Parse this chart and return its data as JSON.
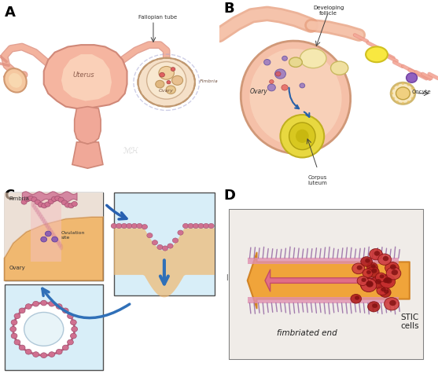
{
  "figure_width": 5.57,
  "figure_height": 4.76,
  "dpi": 100,
  "background_color": "#ffffff",
  "panel_labels": [
    "A",
    "B",
    "C",
    "D"
  ],
  "panel_label_fontsize": 13,
  "panel_label_fontweight": "bold",
  "panel_label_color": "#000000",
  "colors": {
    "uterus_fill": "#f5b8a0",
    "uterus_edge": "#e08870",
    "tube_outer": "#f0a090",
    "tube_inner": "#fad0c0",
    "ovary_fill": "#f8d0b8",
    "ovary_edge": "#d09878",
    "light_blue": "#c8dff0",
    "blue_arrow": "#3070b8",
    "pink_cell": "#d87890",
    "pink_cell_edge": "#b05870",
    "orange_fill": "#f0b060",
    "orange_edge": "#c88030",
    "red_cell": "#c83030",
    "purple_spot": "#8060a0"
  }
}
